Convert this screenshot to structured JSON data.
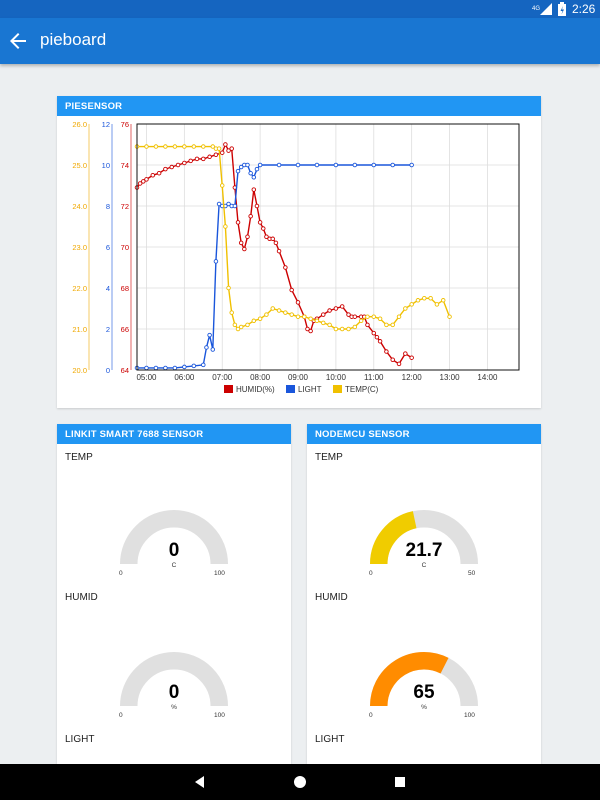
{
  "status_bar": {
    "time": "2:26",
    "network": "4G",
    "icons": [
      "signal-icon",
      "battery-icon"
    ]
  },
  "app_bar": {
    "title": "pieboard",
    "back_icon": "arrow-left-icon"
  },
  "pie_card": {
    "header": "PIESENSOR",
    "chart_data": {
      "type": "line",
      "x_ticks": [
        "05:00",
        "06:00",
        "07:00",
        "08:00",
        "09:00",
        "10:00",
        "11:00",
        "12:00",
        "13:00",
        "14:00"
      ],
      "x_start": "04:45",
      "x_end": "14:50",
      "axes": [
        {
          "id": "temp",
          "ticks": [
            "20.0",
            "21.0",
            "22.0",
            "23.0",
            "24.0",
            "25.0",
            "26.0"
          ],
          "range": [
            20,
            26
          ],
          "color": "#f0a800"
        },
        {
          "id": "light",
          "ticks": [
            "0",
            "2",
            "4",
            "6",
            "8",
            "10",
            "12"
          ],
          "range": [
            0,
            12
          ],
          "color": "#1a56db"
        },
        {
          "id": "humid",
          "ticks": [
            "64",
            "66",
            "68",
            "70",
            "72",
            "74",
            "76"
          ],
          "range": [
            64,
            76
          ],
          "color": "#cc0000"
        }
      ],
      "series": [
        {
          "name": "HUMID(%)",
          "axis": "humid",
          "color": "#cc0000",
          "points": [
            [
              "04:45",
              72.9
            ],
            [
              "04:50",
              73.1
            ],
            [
              "04:55",
              73.2
            ],
            [
              "05:00",
              73.3
            ],
            [
              "05:10",
              73.5
            ],
            [
              "05:20",
              73.6
            ],
            [
              "05:30",
              73.8
            ],
            [
              "05:40",
              73.9
            ],
            [
              "05:50",
              74.0
            ],
            [
              "06:00",
              74.1
            ],
            [
              "06:10",
              74.2
            ],
            [
              "06:20",
              74.3
            ],
            [
              "06:30",
              74.3
            ],
            [
              "06:40",
              74.4
            ],
            [
              "06:50",
              74.5
            ],
            [
              "07:00",
              74.6
            ],
            [
              "07:05",
              75.0
            ],
            [
              "07:10",
              74.7
            ],
            [
              "07:15",
              74.8
            ],
            [
              "07:20",
              72.9
            ],
            [
              "07:25",
              71.2
            ],
            [
              "07:30",
              70.2
            ],
            [
              "07:35",
              69.9
            ],
            [
              "07:40",
              70.5
            ],
            [
              "07:45",
              71.5
            ],
            [
              "07:50",
              72.8
            ],
            [
              "07:55",
              72.0
            ],
            [
              "08:00",
              71.2
            ],
            [
              "08:05",
              70.9
            ],
            [
              "08:10",
              70.5
            ],
            [
              "08:15",
              70.4
            ],
            [
              "08:20",
              70.4
            ],
            [
              "08:25",
              70.2
            ],
            [
              "08:30",
              69.8
            ],
            [
              "08:40",
              69.0
            ],
            [
              "08:50",
              67.9
            ],
            [
              "09:00",
              67.3
            ],
            [
              "09:10",
              66.6
            ],
            [
              "09:15",
              66.0
            ],
            [
              "09:20",
              65.9
            ],
            [
              "09:25",
              66.4
            ],
            [
              "09:30",
              66.5
            ],
            [
              "09:40",
              66.7
            ],
            [
              "09:50",
              66.9
            ],
            [
              "10:00",
              67.0
            ],
            [
              "10:10",
              67.1
            ],
            [
              "10:20",
              66.7
            ],
            [
              "10:25",
              66.6
            ],
            [
              "10:30",
              66.6
            ],
            [
              "10:40",
              66.6
            ],
            [
              "10:45",
              66.6
            ],
            [
              "10:50",
              66.2
            ],
            [
              "11:00",
              65.8
            ],
            [
              "11:05",
              65.6
            ],
            [
              "11:10",
              65.4
            ],
            [
              "11:20",
              64.9
            ],
            [
              "11:30",
              64.5
            ],
            [
              "11:40",
              64.3
            ],
            [
              "11:50",
              64.8
            ],
            [
              "12:00",
              64.6
            ]
          ]
        },
        {
          "name": "LIGHT",
          "axis": "light",
          "color": "#1a56db",
          "points": [
            [
              "04:45",
              0.1
            ],
            [
              "05:00",
              0.1
            ],
            [
              "05:15",
              0.1
            ],
            [
              "05:30",
              0.1
            ],
            [
              "05:45",
              0.1
            ],
            [
              "06:00",
              0.15
            ],
            [
              "06:15",
              0.2
            ],
            [
              "06:30",
              0.25
            ],
            [
              "06:35",
              1.1
            ],
            [
              "06:40",
              1.7
            ],
            [
              "06:45",
              1.0
            ],
            [
              "06:50",
              5.3
            ],
            [
              "06:55",
              8.1
            ],
            [
              "07:00",
              8.0
            ],
            [
              "07:05",
              8.0
            ],
            [
              "07:10",
              8.1
            ],
            [
              "07:15",
              8.0
            ],
            [
              "07:20",
              8.0
            ],
            [
              "07:25",
              9.7
            ],
            [
              "07:30",
              9.9
            ],
            [
              "07:35",
              10.0
            ],
            [
              "07:40",
              10.0
            ],
            [
              "07:45",
              9.6
            ],
            [
              "07:50",
              9.4
            ],
            [
              "07:55",
              9.8
            ],
            [
              "08:00",
              10.0
            ],
            [
              "08:30",
              10.0
            ],
            [
              "09:00",
              10.0
            ],
            [
              "09:30",
              10.0
            ],
            [
              "10:00",
              10.0
            ],
            [
              "10:30",
              10.0
            ],
            [
              "11:00",
              10.0
            ],
            [
              "11:30",
              10.0
            ],
            [
              "12:00",
              10.0
            ]
          ]
        },
        {
          "name": "TEMP(C)",
          "axis": "temp",
          "color": "#f0c000",
          "points": [
            [
              "04:45",
              25.45
            ],
            [
              "05:00",
              25.45
            ],
            [
              "05:15",
              25.45
            ],
            [
              "05:30",
              25.45
            ],
            [
              "05:45",
              25.45
            ],
            [
              "06:00",
              25.45
            ],
            [
              "06:15",
              25.45
            ],
            [
              "06:30",
              25.45
            ],
            [
              "06:45",
              25.45
            ],
            [
              "06:50",
              25.4
            ],
            [
              "06:55",
              25.4
            ],
            [
              "07:00",
              24.5
            ],
            [
              "07:05",
              23.5
            ],
            [
              "07:10",
              22.0
            ],
            [
              "07:15",
              21.4
            ],
            [
              "07:20",
              21.1
            ],
            [
              "07:25",
              21.0
            ],
            [
              "07:30",
              21.05
            ],
            [
              "07:40",
              21.1
            ],
            [
              "07:50",
              21.2
            ],
            [
              "08:00",
              21.25
            ],
            [
              "08:10",
              21.35
            ],
            [
              "08:20",
              21.5
            ],
            [
              "08:30",
              21.45
            ],
            [
              "08:40",
              21.4
            ],
            [
              "08:50",
              21.35
            ],
            [
              "09:00",
              21.3
            ],
            [
              "09:10",
              21.3
            ],
            [
              "09:20",
              21.25
            ],
            [
              "09:30",
              21.2
            ],
            [
              "09:40",
              21.15
            ],
            [
              "09:50",
              21.1
            ],
            [
              "10:00",
              21.0
            ],
            [
              "10:10",
              21.0
            ],
            [
              "10:20",
              21.0
            ],
            [
              "10:30",
              21.05
            ],
            [
              "10:40",
              21.2
            ],
            [
              "10:50",
              21.3
            ],
            [
              "11:00",
              21.3
            ],
            [
              "11:10",
              21.25
            ],
            [
              "11:20",
              21.1
            ],
            [
              "11:30",
              21.1
            ],
            [
              "11:40",
              21.3
            ],
            [
              "11:50",
              21.5
            ],
            [
              "12:00",
              21.6
            ],
            [
              "12:10",
              21.7
            ],
            [
              "12:20",
              21.75
            ],
            [
              "12:30",
              21.75
            ],
            [
              "12:40",
              21.6
            ],
            [
              "12:50",
              21.7
            ],
            [
              "13:00",
              21.3
            ]
          ]
        }
      ]
    }
  },
  "linkit_card": {
    "header": "LINKIT SMART 7688 SENSOR",
    "gauges": [
      {
        "label": "TEMP",
        "value": "0",
        "unit": "C",
        "min": "0",
        "max": "100",
        "fraction": 0,
        "color": "#f0cc00"
      },
      {
        "label": "HUMID",
        "value": "0",
        "unit": "%",
        "min": "0",
        "max": "100",
        "fraction": 0,
        "color": "#ff8c00"
      }
    ],
    "extra_label": "LIGHT"
  },
  "node_card": {
    "header": "NODEMCU SENSOR",
    "gauges": [
      {
        "label": "TEMP",
        "value": "21.7",
        "unit": "C",
        "min": "0",
        "max": "50",
        "fraction": 0.434,
        "color": "#f0cc00"
      },
      {
        "label": "HUMID",
        "value": "65",
        "unit": "%",
        "min": "0",
        "max": "100",
        "fraction": 0.65,
        "color": "#ff8c00"
      }
    ],
    "extra_label": "LIGHT"
  },
  "nav_bar": {
    "icons": [
      "back-triangle-icon",
      "home-circle-icon",
      "recents-square-icon"
    ]
  }
}
